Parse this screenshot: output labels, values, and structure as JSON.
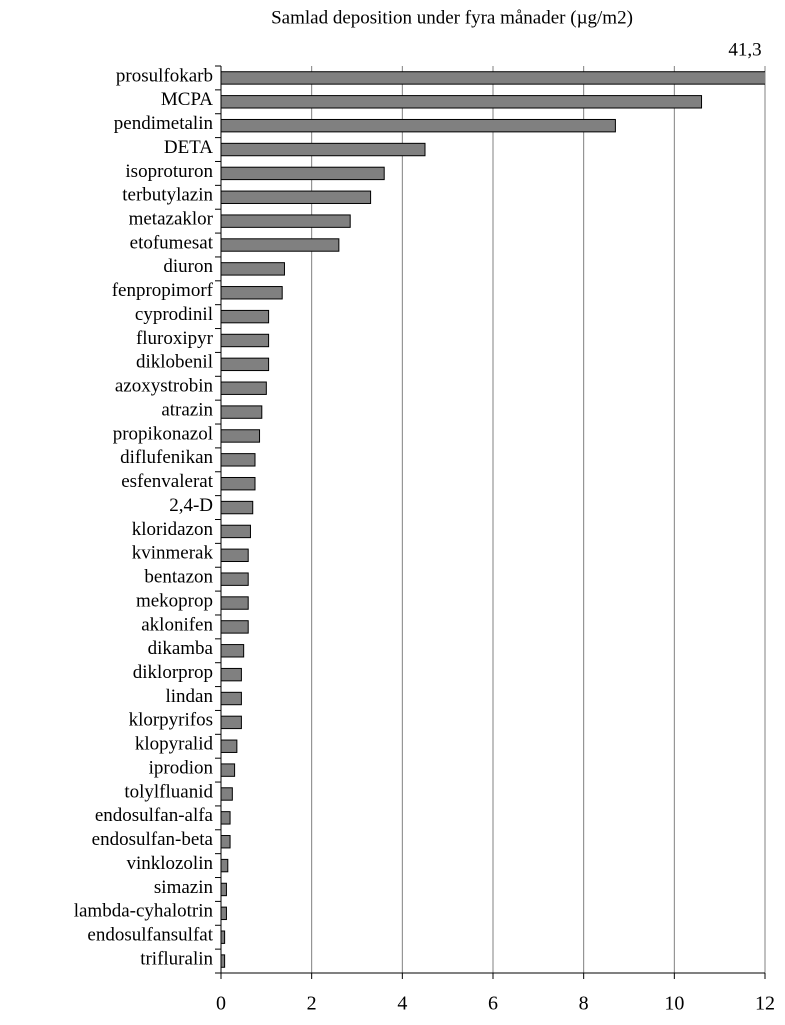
{
  "chart_data": {
    "type": "bar",
    "orientation": "horizontal",
    "title": "Samlad deposition under fyra månader (µg/m2)",
    "categories": [
      "prosulfokarb",
      "MCPA",
      "pendimetalin",
      "DETA",
      "isoproturon",
      "terbutylazin",
      "metazaklor",
      "etofumesat",
      "diuron",
      "fenpropimorf",
      "cyprodinil",
      "fluroxipyr",
      "diklobenil",
      "azoxystrobin",
      "atrazin",
      "propikonazol",
      "diflufenikan",
      "esfenvalerat",
      "2,4-D",
      "kloridazon",
      "kvinmerak",
      "bentazon",
      "mekoprop",
      "aklonifen",
      "dikamba",
      "diklorprop",
      "lindan",
      "klorpyrifos",
      "klopyralid",
      "iprodion",
      "tolylfluanid",
      "endosulfan-alfa",
      "endosulfan-beta",
      "vinklozolin",
      "simazin",
      "lambda-cyhalotrin",
      "endosulfansulfat",
      "trifluralin"
    ],
    "values": [
      41.3,
      10.6,
      8.7,
      4.5,
      3.6,
      3.3,
      2.85,
      2.6,
      1.4,
      1.35,
      1.05,
      1.05,
      1.05,
      1.0,
      0.9,
      0.85,
      0.75,
      0.75,
      0.7,
      0.65,
      0.6,
      0.6,
      0.6,
      0.6,
      0.5,
      0.45,
      0.45,
      0.45,
      0.35,
      0.3,
      0.25,
      0.2,
      0.2,
      0.15,
      0.12,
      0.12,
      0.08,
      0.08
    ],
    "value_labels": [
      "41,3",
      null,
      null,
      null,
      null,
      null,
      null,
      null,
      null,
      null,
      null,
      null,
      null,
      null,
      null,
      null,
      null,
      null,
      null,
      null,
      null,
      null,
      null,
      null,
      null,
      null,
      null,
      null,
      null,
      null,
      null,
      null,
      null,
      null,
      null,
      null,
      null,
      null
    ],
    "color": "#808080",
    "xlim": [
      0,
      12
    ],
    "xticks": [
      0,
      2,
      4,
      6,
      8,
      10,
      12
    ],
    "grid": true
  }
}
